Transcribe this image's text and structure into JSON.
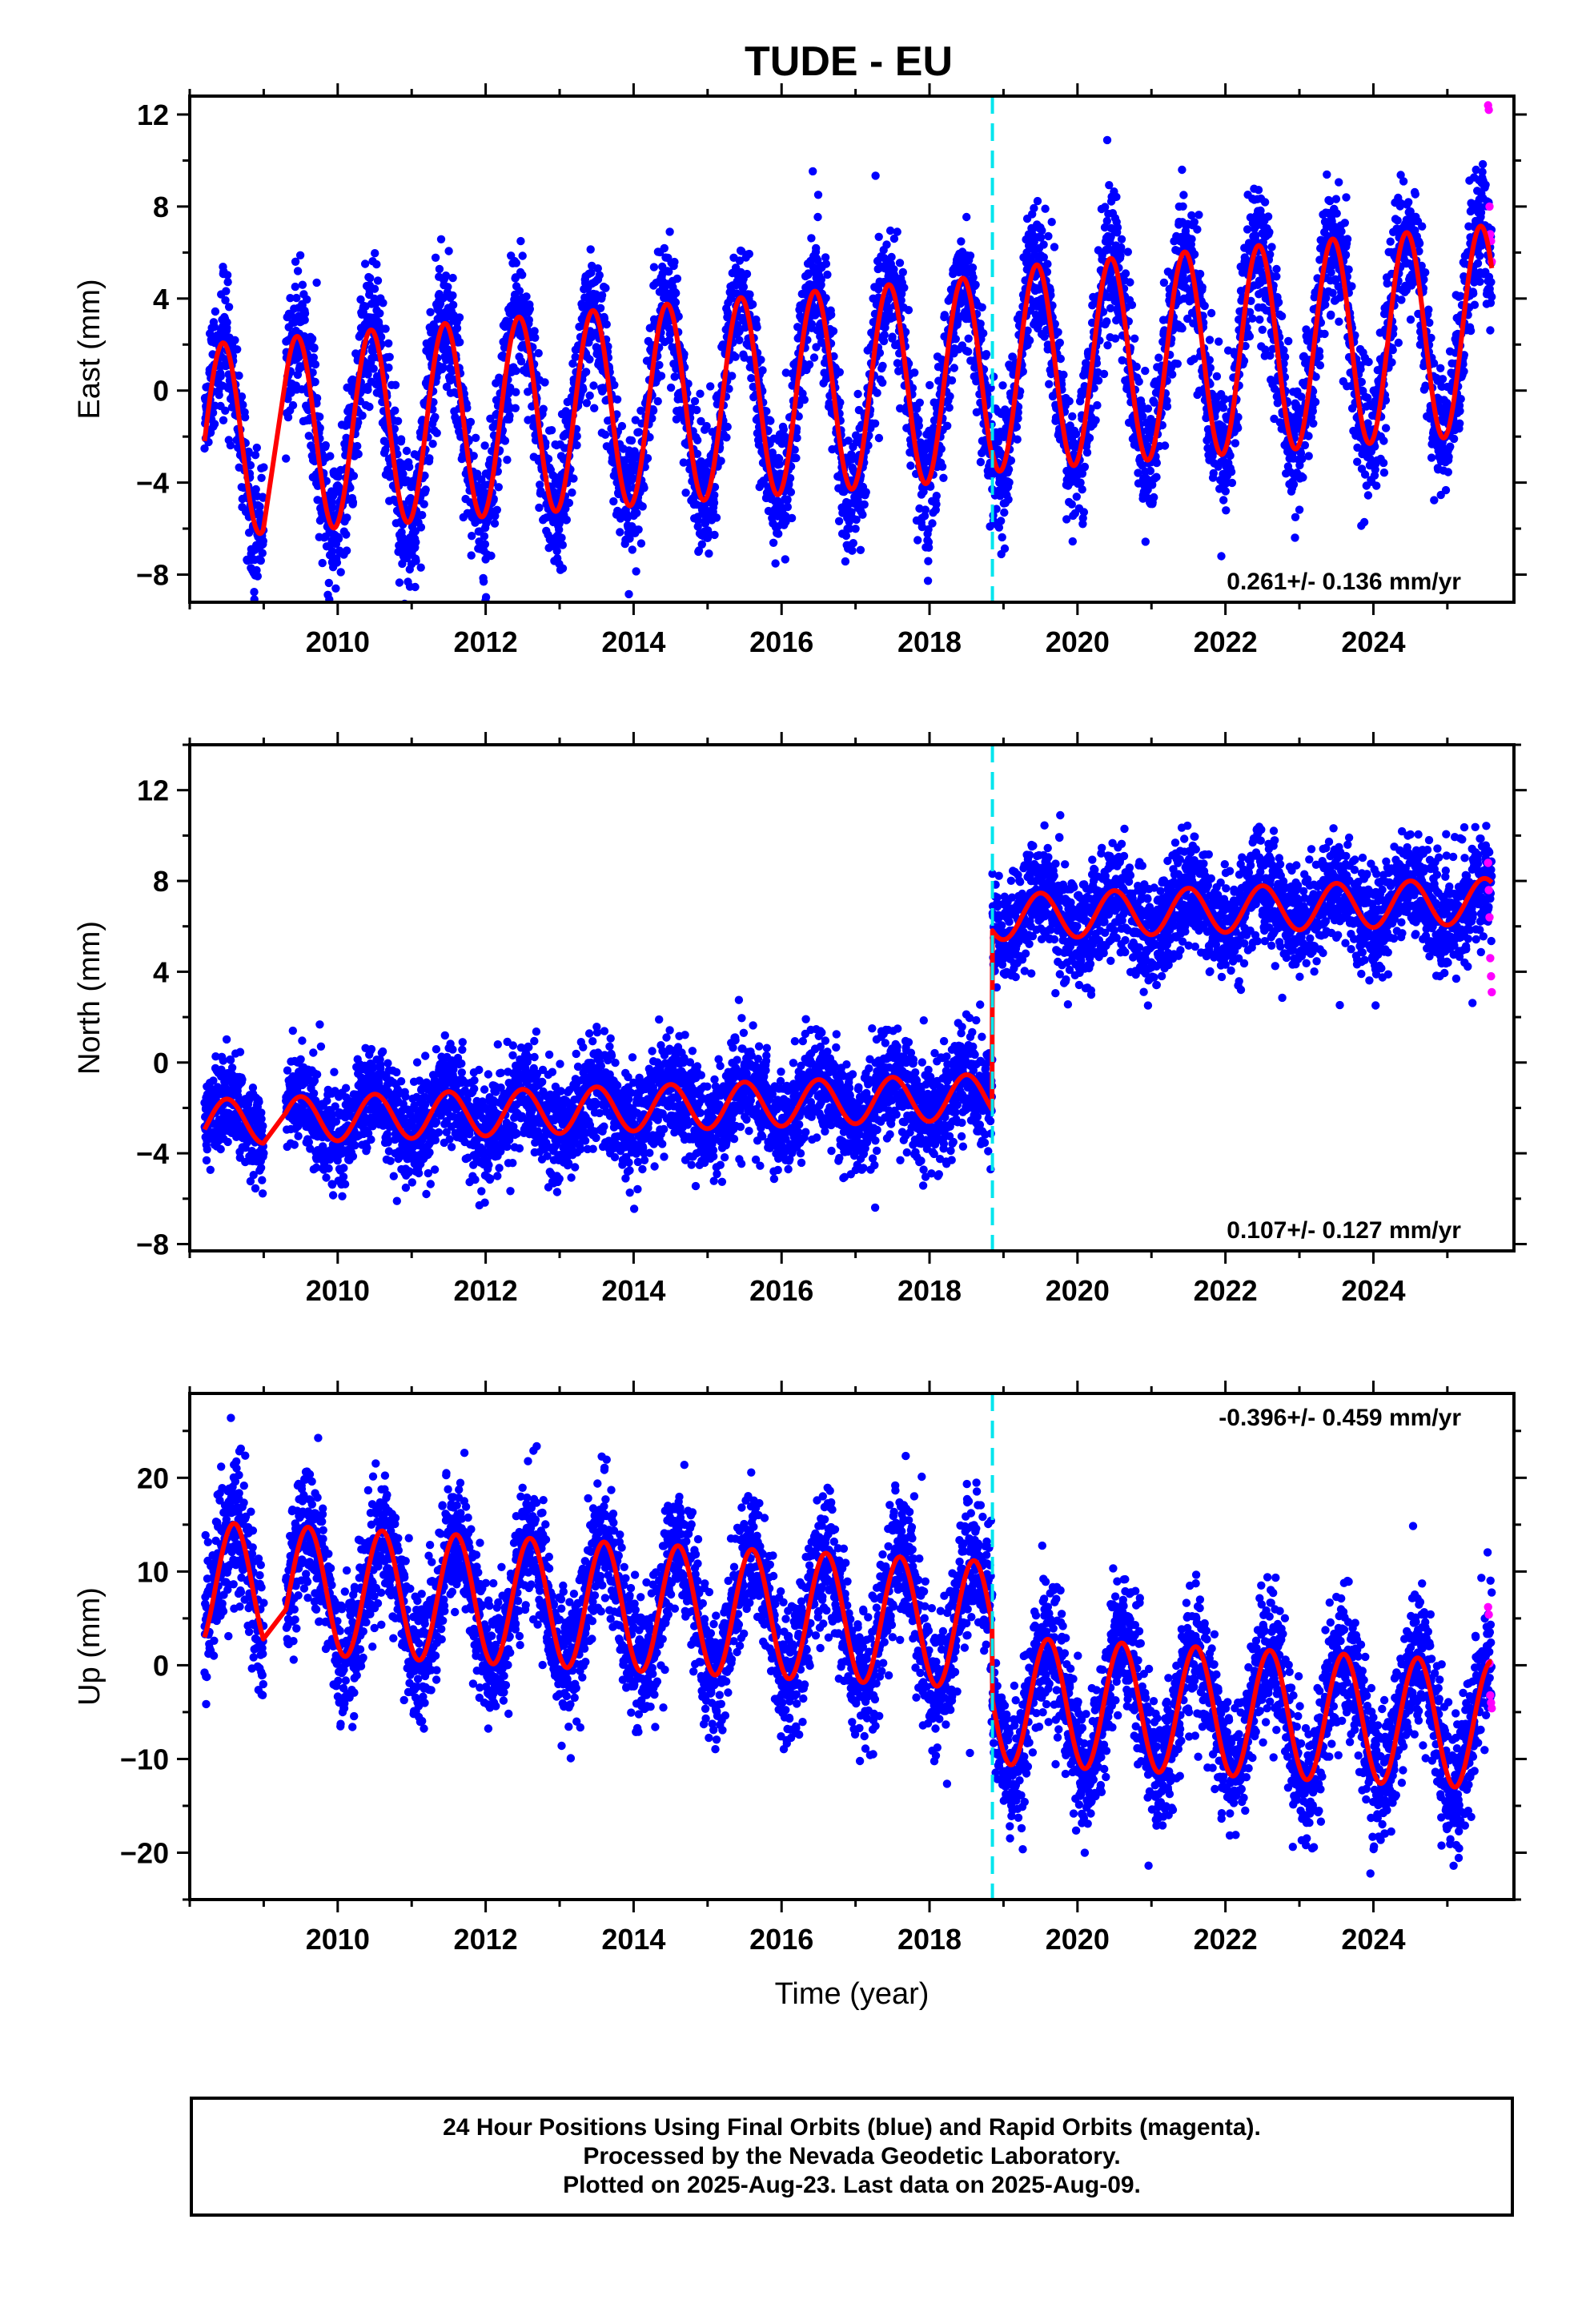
{
  "title": "TUDE - EU",
  "colors": {
    "final_orbits": "#0000ff",
    "rapid_orbits": "#ff00ff",
    "model": "#ff0000",
    "equipment_change": "#00e5ee",
    "axes": "#000000"
  },
  "footer": {
    "line1": "24 Hour Positions Using Final Orbits (blue) and Rapid Orbits (magenta).",
    "line2": "Processed by the Nevada Geodetic Laboratory.",
    "line3": "Plotted on 2025-Aug-23. Last data on 2025-Aug-09."
  },
  "chart_data": [
    {
      "type": "scatter",
      "component": "east",
      "ylabel": "East (mm)",
      "xlim": [
        2008.0,
        2025.9
      ],
      "ylim": [
        -9.2,
        12.8
      ],
      "xticks": [
        2010,
        2012,
        2014,
        2016,
        2018,
        2020,
        2022,
        2024
      ],
      "yticks": [
        -8,
        -4,
        0,
        4,
        8,
        12
      ],
      "data_start": 2008.2,
      "data_end": 2025.6,
      "gap": [
        2009.0,
        2009.3
      ],
      "offset_epoch": 2018.85,
      "rate_label": "0.261+/- 0.136 mm/yr",
      "rate_label_position": "bottom-right",
      "model": {
        "mean": 0.1,
        "rate": 0.261,
        "amplitude_start": 4.2,
        "amplitude_end": 4.5,
        "amplitude_growth": 0.02,
        "phase_peak": 0.45,
        "offset_jump": 0.3
      },
      "scatter_sigma": 1.45,
      "rapid_orbits": {
        "x": [
          2025.55,
          2025.56,
          2025.57,
          2025.58,
          2025.59,
          2025.6
        ],
        "y": [
          12.4,
          12.2,
          8.0,
          6.8,
          6.5,
          5.6
        ]
      }
    },
    {
      "type": "scatter",
      "component": "north",
      "ylabel": "North (mm)",
      "xlim": [
        2008.0,
        2025.9
      ],
      "ylim": [
        -8.3,
        14.0
      ],
      "xticks": [
        2010,
        2012,
        2014,
        2016,
        2018,
        2020,
        2022,
        2024
      ],
      "yticks": [
        -8,
        -4,
        0,
        4,
        8,
        12
      ],
      "data_start": 2008.2,
      "data_end": 2025.6,
      "gap": [
        2009.0,
        2009.3
      ],
      "offset_epoch": 2018.85,
      "rate_label": "0.107+/- 0.127 mm/yr",
      "rate_label_position": "bottom-right",
      "model": {
        "mean_before": -1.7,
        "mean_after": 6.2,
        "rate": 0.107,
        "amplitude": 1.0,
        "phase_peak": 0.5
      },
      "scatter_sigma": 1.15,
      "rapid_orbits": {
        "x": [
          2025.55,
          2025.56,
          2025.57,
          2025.58,
          2025.59,
          2025.6
        ],
        "y": [
          8.8,
          7.6,
          6.4,
          4.6,
          3.8,
          3.1
        ]
      }
    },
    {
      "type": "scatter",
      "component": "up",
      "ylabel": "Up (mm)",
      "xlabel": "Time (year)",
      "xlim": [
        2008.0,
        2025.9
      ],
      "ylim": [
        -25.0,
        29.0
      ],
      "xticks": [
        2010,
        2012,
        2014,
        2016,
        2018,
        2020,
        2022,
        2024
      ],
      "yticks": [
        -20,
        -10,
        0,
        10,
        20
      ],
      "data_start": 2008.2,
      "data_end": 2025.6,
      "gap": [
        2009.0,
        2009.3
      ],
      "offset_epoch": 2018.85,
      "rate_label": "-0.396+/- 0.459 mm/yr",
      "rate_label_position": "top-right",
      "model": {
        "mean_before": 5.0,
        "mean_after": -3.0,
        "rate": -0.396,
        "amplitude": 6.8,
        "phase_peak": 0.6
      },
      "scatter_sigma": 3.6,
      "rapid_orbits": {
        "x": [
          2025.55,
          2025.56,
          2025.57,
          2025.58,
          2025.59,
          2025.6
        ],
        "y": [
          6.2,
          5.4,
          0.2,
          -3.2,
          -4.0,
          -4.6
        ]
      }
    }
  ]
}
